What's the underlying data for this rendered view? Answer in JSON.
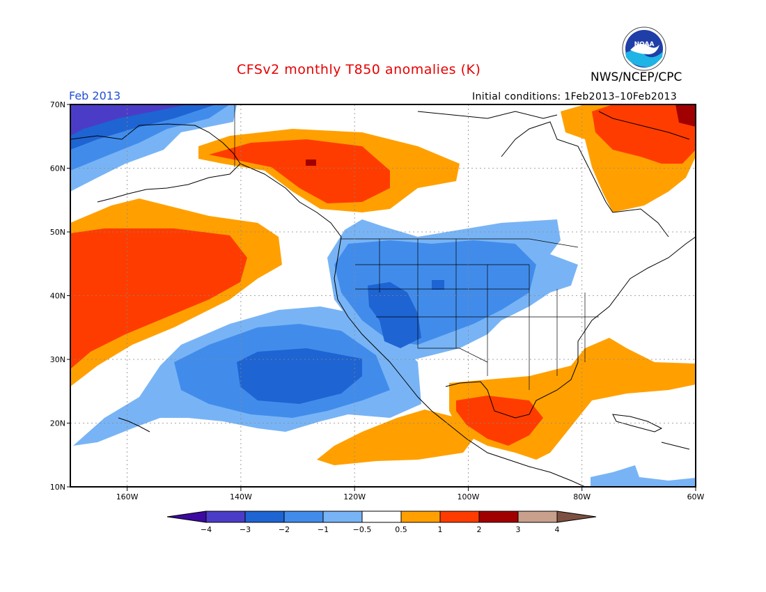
{
  "header": {
    "title": "CFSv2 monthly T850 anomalies (K)",
    "organization": "NWS/NCEP/CPC",
    "month": "Feb 2013",
    "initial_conditions": "Initial conditions: 1Feb2013–10Feb2013",
    "logo_icon": "noaa-logo-icon",
    "logo_text": "NOAA"
  },
  "map": {
    "lon_range": [
      -170,
      -60
    ],
    "lat_range": [
      10,
      70
    ],
    "lon_ticks": [
      {
        "value": -160,
        "label": "160W"
      },
      {
        "value": -140,
        "label": "140W"
      },
      {
        "value": -120,
        "label": "120W"
      },
      {
        "value": -100,
        "label": "100W"
      },
      {
        "value": -80,
        "label": "80W"
      },
      {
        "value": -60,
        "label": "60W"
      }
    ],
    "lat_ticks": [
      {
        "value": 70,
        "label": "70N"
      },
      {
        "value": 60,
        "label": "60N"
      },
      {
        "value": 50,
        "label": "50N"
      },
      {
        "value": 40,
        "label": "40N"
      },
      {
        "value": 30,
        "label": "30N"
      },
      {
        "value": 20,
        "label": "20N"
      },
      {
        "value": 10,
        "label": "10N"
      }
    ],
    "gridlines": true
  },
  "colorbar": {
    "colors": [
      "#3c0aa0",
      "#4b3cc8",
      "#1e64d2",
      "#418ceb",
      "#78b4f5",
      "#ffffff",
      "#ffa000",
      "#ff3c00",
      "#a00000",
      "#c8a08c",
      "#7d5041"
    ],
    "labels": [
      "−4",
      "−3",
      "−2",
      "−1",
      "−0.5",
      "0.5",
      "1",
      "2",
      "3",
      "4"
    ]
  }
}
